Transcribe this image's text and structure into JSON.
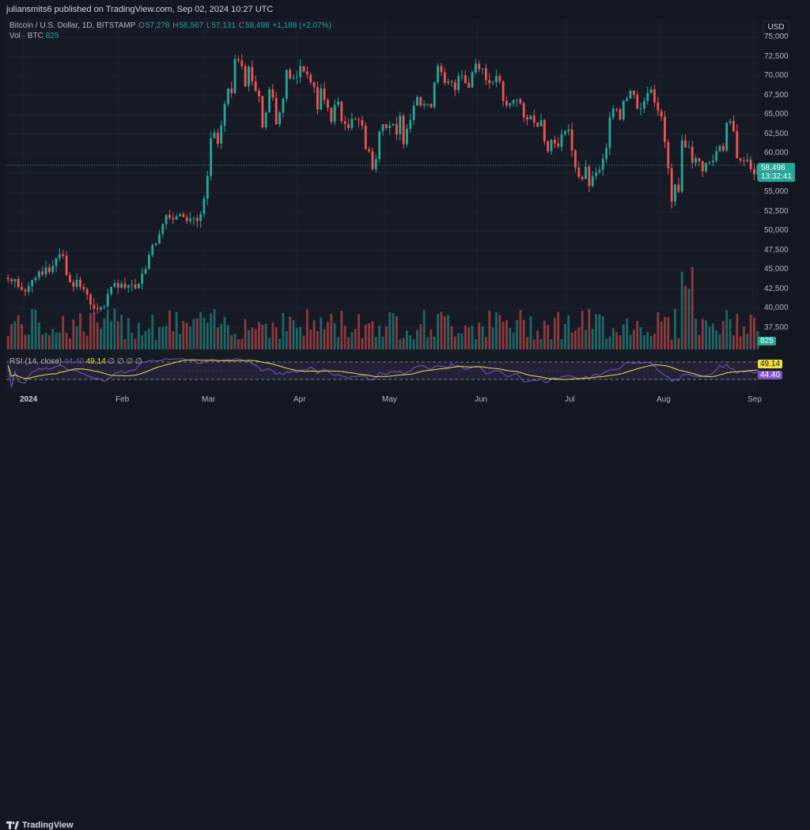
{
  "header": {
    "published": "juliansmits6 published on TradingView.com, Sep 02, 2024 10:27 UTC"
  },
  "legend": {
    "symbol": "Bitcoin / U.S. Dollar, 1D, BITSTAMP",
    "o_label": "O",
    "o_value": "57,278",
    "h_label": "H",
    "h_value": "58,567",
    "l_label": "L",
    "l_value": "57,131",
    "c_label": "C",
    "c_value": "58,498",
    "change": "+1,188 (+2.07%)",
    "vol_label": "Vol · BTC",
    "vol_value": "825"
  },
  "rsi": {
    "label": "RSI (14, close)",
    "value": "44.40",
    "ma_value": "49.14",
    "extra": "∅ ∅ ∅ ∅"
  },
  "price_axis": {
    "currency": "USD",
    "ticks": [
      "75,000",
      "72,500",
      "70,000",
      "67,500",
      "65,000",
      "62,500",
      "60,000",
      "57,500",
      "55,000",
      "52,500",
      "50,000",
      "47,500",
      "45,000",
      "42,500",
      "40,000",
      "37,500"
    ],
    "last_price": "58,498",
    "countdown": "13:32:41",
    "vol_tag": "825",
    "rsi_ma_tag": "49.14",
    "rsi_tag": "44.40"
  },
  "time_axis": [
    "2024",
    "Feb",
    "Mar",
    "Apr",
    "May",
    "Jun",
    "Jul",
    "Aug",
    "Sep"
  ],
  "footer": {
    "brand": "TradingView"
  },
  "colors": {
    "up": "#26a69a",
    "down": "#ef5350",
    "rsi": "#7e57c2",
    "rsi_ma": "#f2e13d",
    "bg": "#161a25"
  },
  "chart_data": {
    "type": "candlestick",
    "title": "Bitcoin / U.S. Dollar, 1D, BITSTAMP",
    "y_range": [
      36000,
      75500
    ],
    "closes": [
      43800,
      43500,
      43800,
      42800,
      42400,
      42200,
      42900,
      43700,
      44000,
      44800,
      44400,
      45300,
      44700,
      45500,
      46500,
      47000,
      46800,
      44300,
      43400,
      42800,
      43700,
      42800,
      42500,
      41800,
      40500,
      40000,
      39900,
      40200,
      40300,
      41900,
      42800,
      43300,
      42700,
      43200,
      42700,
      43000,
      43100,
      42600,
      43200,
      44500,
      45100,
      46900,
      48200,
      48400,
      49600,
      50900,
      52100,
      51700,
      51500,
      51900,
      52200,
      51800,
      51300,
      51600,
      51700,
      51300,
      52200,
      54200,
      57100,
      62000,
      62700,
      61300,
      63600,
      66400,
      68400,
      67800,
      72200,
      72000,
      71300,
      68700,
      71200,
      69300,
      68100,
      67400,
      63400,
      65300,
      68300,
      67200,
      63800,
      65300,
      67100,
      70800,
      69700,
      69800,
      69900,
      71300,
      70600,
      70200,
      69200,
      68600,
      65700,
      68400,
      66900,
      65900,
      64100,
      66300,
      66700,
      64200,
      63800,
      63300,
      64500,
      64400,
      64300,
      63600,
      60600,
      60300,
      58000,
      59300,
      62900,
      63800,
      63300,
      63600,
      63800,
      62500,
      64900,
      61200,
      63200,
      64300,
      66200,
      67300,
      66200,
      66400,
      66400,
      66000,
      69200,
      71300,
      70500,
      69100,
      69300,
      69200,
      68200,
      70000,
      70100,
      69100,
      68500,
      70500,
      71600,
      70900,
      71000,
      69500,
      69100,
      69200,
      70000,
      69300,
      66800,
      66200,
      66500,
      66900,
      67000,
      66500,
      64700,
      64400,
      64900,
      64000,
      63500,
      64300,
      61600,
      60300,
      61800,
      61300,
      60900,
      62500,
      62900,
      63100,
      60400,
      58200,
      57000,
      56700,
      58300,
      55800,
      57100,
      57600,
      57900,
      59300,
      60700,
      64700,
      65800,
      65700,
      64400,
      66800,
      67100,
      68100,
      67600,
      65800,
      65800,
      66800,
      67800,
      68300,
      66600,
      65500,
      64800,
      61500,
      58100,
      53800,
      56000,
      55100,
      61700,
      60800,
      60900,
      58800,
      59400,
      59000,
      57700,
      58800,
      58900,
      59100,
      60300,
      61000,
      60400,
      64000,
      64200,
      62900,
      59400,
      59100,
      59000,
      59200,
      58000,
      57300,
      58500
    ]
  }
}
